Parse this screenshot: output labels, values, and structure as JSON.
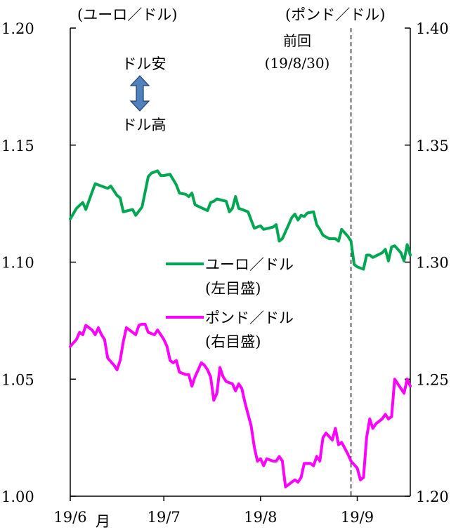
{
  "chart_data": {
    "type": "line",
    "left_axis": {
      "unit_label": "(ユーロ／ドル)",
      "ylim": [
        1.0,
        1.2
      ],
      "ticks": [
        1.0,
        1.05,
        1.1,
        1.15,
        1.2
      ],
      "tick_labels": [
        "1.00",
        "1.05",
        "1.10",
        "1.15",
        "1.20"
      ]
    },
    "right_axis": {
      "unit_label": "(ポンド／ドル)",
      "ylim": [
        1.2,
        1.4
      ],
      "ticks": [
        1.2,
        1.25,
        1.3,
        1.35,
        1.4
      ],
      "tick_labels": [
        "1.20",
        "1.25",
        "1.30",
        "1.35",
        "1.40"
      ]
    },
    "x_axis": {
      "start": "2019-06-01",
      "end": "2019-09-18",
      "ticks": [
        "2019-06-01",
        "2019-07-01",
        "2019-08-01",
        "2019-09-01"
      ],
      "tick_labels": [
        "19/6",
        "19/7",
        "19/8",
        "19/9"
      ],
      "first_suffix": "月"
    },
    "annotations": {
      "direction_top": "ドル安",
      "direction_bottom": "ドル高",
      "prev_line_label": "前回",
      "prev_line_date_label": "(19/8/30)",
      "prev_line_date": "2019-08-30"
    },
    "legend": {
      "position": "center-right",
      "entries": [
        {
          "label": "ユーロ／ドル",
          "sub": "(左目盛)",
          "color": "#00a651"
        },
        {
          "label": "ポンド／ドル",
          "sub": "(右目盛)",
          "color": "#ff00ff"
        }
      ]
    },
    "series": [
      {
        "name": "ユーロ／ドル",
        "axis": "left",
        "color": "#00a651",
        "points": [
          [
            "2019-06-01",
            1.1185
          ],
          [
            "2019-06-03",
            1.123
          ],
          [
            "2019-06-05",
            1.1255
          ],
          [
            "2019-06-06",
            1.1225
          ],
          [
            "2019-06-08",
            1.13
          ],
          [
            "2019-06-09",
            1.1335
          ],
          [
            "2019-06-11",
            1.1325
          ],
          [
            "2019-06-13",
            1.1315
          ],
          [
            "2019-06-14",
            1.1325
          ],
          [
            "2019-06-16",
            1.1285
          ],
          [
            "2019-06-17",
            1.1275
          ],
          [
            "2019-06-18",
            1.1215
          ],
          [
            "2019-06-21",
            1.1225
          ],
          [
            "2019-06-22",
            1.12
          ],
          [
            "2019-06-24",
            1.1235
          ],
          [
            "2019-06-25",
            1.13
          ],
          [
            "2019-06-26",
            1.1365
          ],
          [
            "2019-06-27",
            1.138
          ],
          [
            "2019-06-29",
            1.139
          ],
          [
            "2019-06-30",
            1.137
          ],
          [
            "2019-07-01",
            1.137
          ],
          [
            "2019-07-03",
            1.1375
          ],
          [
            "2019-07-05",
            1.133
          ],
          [
            "2019-07-06",
            1.1295
          ],
          [
            "2019-07-08",
            1.129
          ],
          [
            "2019-07-09",
            1.128
          ],
          [
            "2019-07-10",
            1.1295
          ],
          [
            "2019-07-11",
            1.1245
          ],
          [
            "2019-07-15",
            1.122
          ],
          [
            "2019-07-16",
            1.1255
          ],
          [
            "2019-07-17",
            1.126
          ],
          [
            "2019-07-18",
            1.127
          ],
          [
            "2019-07-21",
            1.126
          ],
          [
            "2019-07-22",
            1.1215
          ],
          [
            "2019-07-23",
            1.123
          ],
          [
            "2019-07-24",
            1.128
          ],
          [
            "2019-07-25",
            1.123
          ],
          [
            "2019-07-28",
            1.1215
          ],
          [
            "2019-07-29",
            1.118
          ],
          [
            "2019-07-30",
            1.1145
          ],
          [
            "2019-08-01",
            1.1155
          ],
          [
            "2019-08-02",
            1.114
          ],
          [
            "2019-08-05",
            1.115
          ],
          [
            "2019-08-06",
            1.116
          ],
          [
            "2019-08-07",
            1.109
          ],
          [
            "2019-08-08",
            1.11
          ],
          [
            "2019-08-09",
            1.113
          ],
          [
            "2019-08-11",
            1.119
          ],
          [
            "2019-08-12",
            1.1205
          ],
          [
            "2019-08-13",
            1.118
          ],
          [
            "2019-08-14",
            1.12
          ],
          [
            "2019-08-15",
            1.1195
          ],
          [
            "2019-08-16",
            1.121
          ],
          [
            "2019-08-18",
            1.1215
          ],
          [
            "2019-08-19",
            1.116
          ],
          [
            "2019-08-20",
            1.114
          ],
          [
            "2019-08-21",
            1.1115
          ],
          [
            "2019-08-23",
            1.11
          ],
          [
            "2019-08-25",
            1.11
          ],
          [
            "2019-08-26",
            1.109
          ],
          [
            "2019-08-27",
            1.114
          ],
          [
            "2019-08-28",
            1.1125
          ],
          [
            "2019-08-29",
            1.111
          ],
          [
            "2019-08-30",
            1.109
          ],
          [
            "2019-08-31",
            1.099
          ],
          [
            "2019-09-01",
            1.098
          ],
          [
            "2019-09-03",
            1.097
          ],
          [
            "2019-09-04",
            1.103
          ],
          [
            "2019-09-05",
            1.103
          ],
          [
            "2019-09-06",
            1.102
          ],
          [
            "2019-09-09",
            1.104
          ],
          [
            "2019-09-10",
            1.1055
          ],
          [
            "2019-09-11",
            1.1005
          ],
          [
            "2019-09-12",
            1.1065
          ],
          [
            "2019-09-13",
            1.107
          ],
          [
            "2019-09-15",
            1.104
          ],
          [
            "2019-09-16",
            1.1005
          ],
          [
            "2019-09-17",
            1.1075
          ],
          [
            "2019-09-18",
            1.103
          ]
        ]
      },
      {
        "name": "ポンド／ドル",
        "axis": "right",
        "color": "#ff00ff",
        "points": [
          [
            "2019-06-01",
            1.264
          ],
          [
            "2019-06-03",
            1.267
          ],
          [
            "2019-06-04",
            1.27
          ],
          [
            "2019-06-05",
            1.269
          ],
          [
            "2019-06-06",
            1.273
          ],
          [
            "2019-06-08",
            1.271
          ],
          [
            "2019-06-09",
            1.269
          ],
          [
            "2019-06-10",
            1.272
          ],
          [
            "2019-06-11",
            1.269
          ],
          [
            "2019-06-12",
            1.267
          ],
          [
            "2019-06-13",
            1.259
          ],
          [
            "2019-06-15",
            1.256
          ],
          [
            "2019-06-16",
            1.254
          ],
          [
            "2019-06-17",
            1.258
          ],
          [
            "2019-06-18",
            1.266
          ],
          [
            "2019-06-19",
            1.272
          ],
          [
            "2019-06-21",
            1.27
          ],
          [
            "2019-06-22",
            1.269
          ],
          [
            "2019-06-23",
            1.273
          ],
          [
            "2019-06-24",
            1.2735
          ],
          [
            "2019-06-25",
            1.2735
          ],
          [
            "2019-06-26",
            1.27
          ],
          [
            "2019-06-28",
            1.269
          ],
          [
            "2019-06-29",
            1.271
          ],
          [
            "2019-06-30",
            1.269
          ],
          [
            "2019-07-01",
            1.267
          ],
          [
            "2019-07-02",
            1.264
          ],
          [
            "2019-07-03",
            1.258
          ],
          [
            "2019-07-04",
            1.257
          ],
          [
            "2019-07-05",
            1.258
          ],
          [
            "2019-07-06",
            1.253
          ],
          [
            "2019-07-08",
            1.252
          ],
          [
            "2019-07-09",
            1.252
          ],
          [
            "2019-07-10",
            1.247
          ],
          [
            "2019-07-11",
            1.251
          ],
          [
            "2019-07-12",
            1.254
          ],
          [
            "2019-07-13",
            1.257
          ],
          [
            "2019-07-14",
            1.256
          ],
          [
            "2019-07-15",
            1.254
          ],
          [
            "2019-07-16",
            1.251
          ],
          [
            "2019-07-17",
            1.241
          ],
          [
            "2019-07-18",
            1.244
          ],
          [
            "2019-07-19",
            1.255
          ],
          [
            "2019-07-20",
            1.251
          ],
          [
            "2019-07-21",
            1.249
          ],
          [
            "2019-07-23",
            1.248
          ],
          [
            "2019-07-24",
            1.245
          ],
          [
            "2019-07-25",
            1.248
          ],
          [
            "2019-07-26",
            1.246
          ],
          [
            "2019-07-27",
            1.24
          ],
          [
            "2019-07-29",
            1.23
          ],
          [
            "2019-07-30",
            1.221
          ],
          [
            "2019-07-31",
            1.215
          ],
          [
            "2019-08-01",
            1.216
          ],
          [
            "2019-08-02",
            1.213
          ],
          [
            "2019-08-03",
            1.216
          ],
          [
            "2019-08-05",
            1.215
          ],
          [
            "2019-08-06",
            1.215
          ],
          [
            "2019-08-07",
            1.217
          ],
          [
            "2019-08-08",
            1.215
          ],
          [
            "2019-08-09",
            1.204
          ],
          [
            "2019-08-11",
            1.206
          ],
          [
            "2019-08-12",
            1.207
          ],
          [
            "2019-08-13",
            1.206
          ],
          [
            "2019-08-14",
            1.208
          ],
          [
            "2019-08-15",
            1.214
          ],
          [
            "2019-08-17",
            1.214
          ],
          [
            "2019-08-18",
            1.213
          ],
          [
            "2019-08-19",
            1.217
          ],
          [
            "2019-08-20",
            1.215
          ],
          [
            "2019-08-21",
            1.225
          ],
          [
            "2019-08-22",
            1.227
          ],
          [
            "2019-08-24",
            1.224
          ],
          [
            "2019-08-25",
            1.229
          ],
          [
            "2019-08-26",
            1.222
          ],
          [
            "2019-08-27",
            1.223
          ],
          [
            "2019-08-29",
            1.218
          ],
          [
            "2019-08-30",
            1.215
          ],
          [
            "2019-09-01",
            1.212
          ],
          [
            "2019-09-02",
            1.207
          ],
          [
            "2019-09-03",
            1.208
          ],
          [
            "2019-09-04",
            1.225
          ],
          [
            "2019-09-05",
            1.233
          ],
          [
            "2019-09-06",
            1.229
          ],
          [
            "2019-09-07",
            1.231
          ],
          [
            "2019-09-09",
            1.233
          ],
          [
            "2019-09-10",
            1.235
          ],
          [
            "2019-09-11",
            1.233
          ],
          [
            "2019-09-12",
            1.234
          ],
          [
            "2019-09-13",
            1.25
          ],
          [
            "2019-09-14",
            1.248
          ],
          [
            "2019-09-15",
            1.246
          ],
          [
            "2019-09-16",
            1.244
          ],
          [
            "2019-09-17",
            1.25
          ],
          [
            "2019-09-18",
            1.247
          ]
        ]
      }
    ],
    "grid": false
  }
}
